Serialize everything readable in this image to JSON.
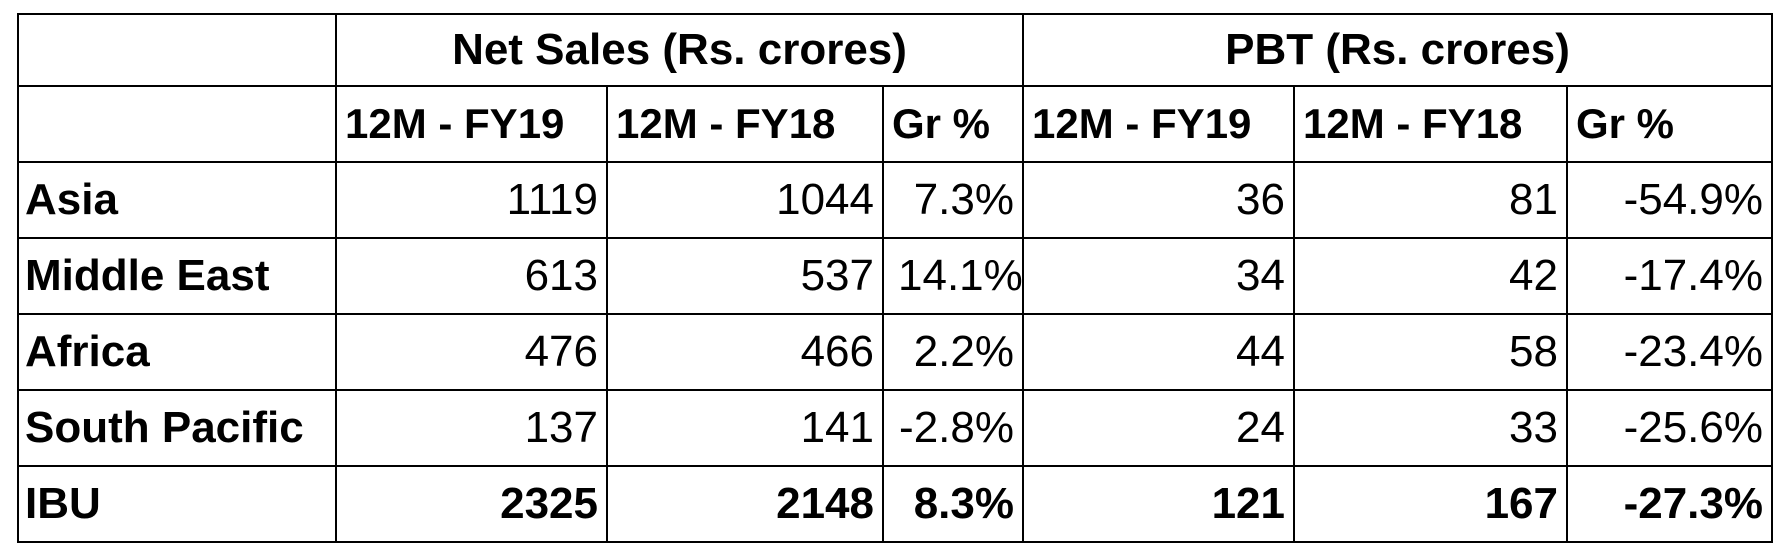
{
  "table": {
    "group_headers": [
      "Net Sales (Rs. crores)",
      "PBT (Rs. crores)"
    ],
    "sub_headers": [
      "12M - FY19",
      "12M - FY18",
      "Gr %",
      "12M - FY19",
      "12M - FY18",
      "Gr %"
    ],
    "rows": [
      {
        "region": "Asia",
        "values": [
          "1119",
          "1044",
          "7.3%",
          "36",
          "81",
          "-54.9%"
        ]
      },
      {
        "region": "Middle East",
        "values": [
          "613",
          "537",
          "14.1%",
          "34",
          "42",
          "-17.4%"
        ]
      },
      {
        "region": "Africa",
        "values": [
          "476",
          "466",
          "2.2%",
          "44",
          "58",
          "-23.4%"
        ]
      },
      {
        "region": "South Pacific",
        "values": [
          "137",
          "141",
          "-2.8%",
          "24",
          "33",
          "-25.6%"
        ]
      }
    ],
    "total": {
      "region": "IBU",
      "values": [
        "2325",
        "2148",
        "8.3%",
        "121",
        "167",
        "-27.3%"
      ]
    }
  }
}
